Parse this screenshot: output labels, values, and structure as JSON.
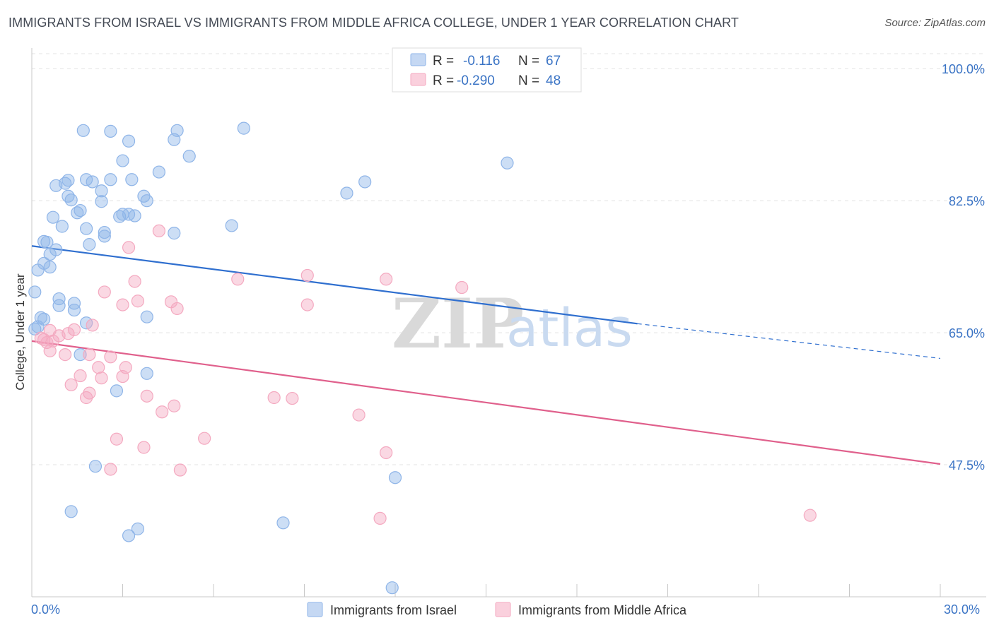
{
  "chart_data": {
    "type": "scatter",
    "title": "IMMIGRANTS FROM ISRAEL VS IMMIGRANTS FROM MIDDLE AFRICA COLLEGE, UNDER 1 YEAR CORRELATION CHART",
    "source": "Source: ZipAtlas.com",
    "xlabel": "",
    "ylabel": "College, Under 1 year",
    "xlim": [
      0,
      30
    ],
    "ylim": [
      30,
      100
    ],
    "x_tick_labels": [
      "0.0%",
      "30.0%"
    ],
    "y_ticks": [
      47.5,
      65.0,
      82.5,
      100.0
    ],
    "y_tick_labels": [
      "47.5%",
      "65.0%",
      "82.5%",
      "100.0%"
    ],
    "watermark": {
      "zip": "ZIP",
      "atlas": "atlas"
    },
    "legend": {
      "r_label": "R =",
      "n_label": "N =",
      "entries": [
        {
          "r": "-0.116",
          "n": "67"
        },
        {
          "r": "-0.290",
          "n": "48"
        }
      ]
    },
    "series": [
      {
        "name": "Immigrants from Israel",
        "color": "#8fb5e8",
        "line_color": "#2f6fcf",
        "trend": {
          "x0": 0,
          "y0": 76.5,
          "x1": 20.0,
          "y1": 66.2,
          "dash_to_x": 30,
          "dash_to_y": 61.6
        },
        "points": [
          [
            1.7,
            91.8
          ],
          [
            2.6,
            91.7
          ],
          [
            3.2,
            90.4
          ],
          [
            4.8,
            91.8
          ],
          [
            4.7,
            90.6
          ],
          [
            7.0,
            92.1
          ],
          [
            3.0,
            87.8
          ],
          [
            4.2,
            86.3
          ],
          [
            5.2,
            88.4
          ],
          [
            1.2,
            85.2
          ],
          [
            1.8,
            85.3
          ],
          [
            2.0,
            85.0
          ],
          [
            2.6,
            85.3
          ],
          [
            3.3,
            85.3
          ],
          [
            0.8,
            84.5
          ],
          [
            1.1,
            84.8
          ],
          [
            1.2,
            83.1
          ],
          [
            1.3,
            82.6
          ],
          [
            2.3,
            83.8
          ],
          [
            2.3,
            82.4
          ],
          [
            3.7,
            83.1
          ],
          [
            3.8,
            82.5
          ],
          [
            1.6,
            81.2
          ],
          [
            1.5,
            80.9
          ],
          [
            0.7,
            80.3
          ],
          [
            2.9,
            80.4
          ],
          [
            3.0,
            80.7
          ],
          [
            3.2,
            80.7
          ],
          [
            3.4,
            80.5
          ],
          [
            1.0,
            79.1
          ],
          [
            1.8,
            78.8
          ],
          [
            2.4,
            78.3
          ],
          [
            2.4,
            77.8
          ],
          [
            4.7,
            78.2
          ],
          [
            6.6,
            79.2
          ],
          [
            10.4,
            83.5
          ],
          [
            11.0,
            85.0
          ],
          [
            15.7,
            87.5
          ],
          [
            0.4,
            77.1
          ],
          [
            0.5,
            77.0
          ],
          [
            1.9,
            76.7
          ],
          [
            0.8,
            76.0
          ],
          [
            0.6,
            75.4
          ],
          [
            0.4,
            74.2
          ],
          [
            0.6,
            73.7
          ],
          [
            0.2,
            73.3
          ],
          [
            0.1,
            70.4
          ],
          [
            0.9,
            69.5
          ],
          [
            0.9,
            68.6
          ],
          [
            1.4,
            68.9
          ],
          [
            1.4,
            68.0
          ],
          [
            3.8,
            67.1
          ],
          [
            0.3,
            67.0
          ],
          [
            0.4,
            66.8
          ],
          [
            1.8,
            66.3
          ],
          [
            0.1,
            65.5
          ],
          [
            1.6,
            62.1
          ],
          [
            3.8,
            59.6
          ],
          [
            2.8,
            57.3
          ],
          [
            2.1,
            47.3
          ],
          [
            12.0,
            45.8
          ],
          [
            1.3,
            41.3
          ],
          [
            3.5,
            39.0
          ],
          [
            3.2,
            38.1
          ],
          [
            8.3,
            39.8
          ],
          [
            11.9,
            31.2
          ],
          [
            0.2,
            65.8
          ]
        ]
      },
      {
        "name": "Immigrants from Middle Africa",
        "color": "#f4a9c0",
        "line_color": "#e0608c",
        "trend": {
          "x0": 0,
          "y0": 63.9,
          "x1": 30,
          "y1": 47.6
        },
        "points": [
          [
            4.2,
            78.5
          ],
          [
            3.2,
            76.3
          ],
          [
            6.8,
            72.1
          ],
          [
            9.1,
            72.6
          ],
          [
            11.7,
            72.1
          ],
          [
            14.2,
            71.0
          ],
          [
            3.4,
            71.8
          ],
          [
            2.4,
            70.4
          ],
          [
            3.5,
            69.2
          ],
          [
            4.6,
            69.1
          ],
          [
            3.0,
            68.7
          ],
          [
            4.8,
            68.2
          ],
          [
            9.1,
            68.7
          ],
          [
            2.0,
            66.0
          ],
          [
            1.4,
            65.4
          ],
          [
            0.6,
            65.3
          ],
          [
            0.9,
            64.6
          ],
          [
            0.4,
            64.1
          ],
          [
            0.5,
            63.7
          ],
          [
            0.6,
            62.6
          ],
          [
            1.1,
            62.1
          ],
          [
            1.9,
            62.1
          ],
          [
            2.6,
            61.8
          ],
          [
            2.2,
            60.4
          ],
          [
            3.1,
            60.4
          ],
          [
            1.6,
            59.3
          ],
          [
            2.3,
            59.0
          ],
          [
            3.0,
            59.2
          ],
          [
            1.3,
            58.1
          ],
          [
            1.9,
            57.0
          ],
          [
            3.8,
            56.6
          ],
          [
            1.8,
            56.4
          ],
          [
            4.7,
            55.3
          ],
          [
            8.0,
            56.4
          ],
          [
            8.6,
            56.3
          ],
          [
            4.3,
            54.5
          ],
          [
            10.8,
            54.1
          ],
          [
            2.8,
            50.9
          ],
          [
            5.7,
            51.0
          ],
          [
            3.7,
            49.8
          ],
          [
            11.7,
            49.1
          ],
          [
            2.6,
            46.9
          ],
          [
            4.9,
            46.8
          ],
          [
            11.5,
            40.4
          ],
          [
            25.7,
            40.8
          ],
          [
            0.3,
            64.3
          ],
          [
            1.2,
            64.9
          ],
          [
            0.7,
            63.9
          ]
        ]
      }
    ]
  }
}
